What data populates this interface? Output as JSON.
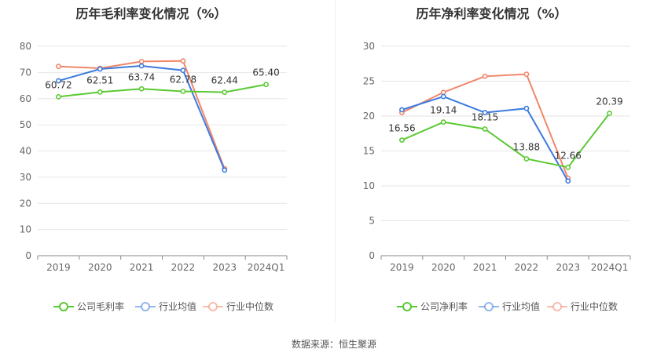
{
  "source_text": "数据来源：恒生聚源",
  "chart_data": [
    {
      "type": "line",
      "title": "历年毛利率变化情况（%）",
      "categories": [
        "2019",
        "2020",
        "2021",
        "2022",
        "2023",
        "2024Q1"
      ],
      "ylim": [
        0,
        80
      ],
      "yticks": [
        0,
        10,
        20,
        30,
        40,
        50,
        60,
        70,
        80
      ],
      "grid": true,
      "legend_position": "bottom",
      "series": [
        {
          "name": "公司毛利率",
          "color": "#5ac932",
          "values": [
            60.72,
            62.51,
            63.74,
            62.78,
            62.44,
            65.4
          ],
          "labels": [
            "60.72",
            "62.51",
            "63.74",
            "62.78",
            "62.44",
            "65.40"
          ]
        },
        {
          "name": "行业均值",
          "color": "#3d7be0",
          "values": [
            66.8,
            71.3,
            72.5,
            70.8,
            32.7,
            null
          ]
        },
        {
          "name": "行业中位数",
          "color": "#f0876a",
          "values": [
            72.3,
            71.6,
            74.2,
            74.4,
            33.2,
            null
          ]
        }
      ]
    },
    {
      "type": "line",
      "title": "历年净利率变化情况（%）",
      "categories": [
        "2019",
        "2020",
        "2021",
        "2022",
        "2023",
        "2024Q1"
      ],
      "ylim": [
        0,
        30
      ],
      "yticks": [
        0,
        5,
        10,
        15,
        20,
        25,
        30
      ],
      "grid": true,
      "legend_position": "bottom",
      "series": [
        {
          "name": "公司净利率",
          "color": "#5ac932",
          "values": [
            16.56,
            19.14,
            18.15,
            13.88,
            12.66,
            20.39
          ],
          "labels": [
            "16.56",
            "19.14",
            "18.15",
            "13.88",
            "12.66",
            "20.39"
          ]
        },
        {
          "name": "行业均值",
          "color": "#3d7be0",
          "values": [
            20.9,
            22.8,
            20.5,
            21.1,
            10.7,
            null
          ]
        },
        {
          "name": "行业中位数",
          "color": "#f0876a",
          "values": [
            20.5,
            23.4,
            25.7,
            26.0,
            11.1,
            null
          ]
        }
      ]
    }
  ]
}
